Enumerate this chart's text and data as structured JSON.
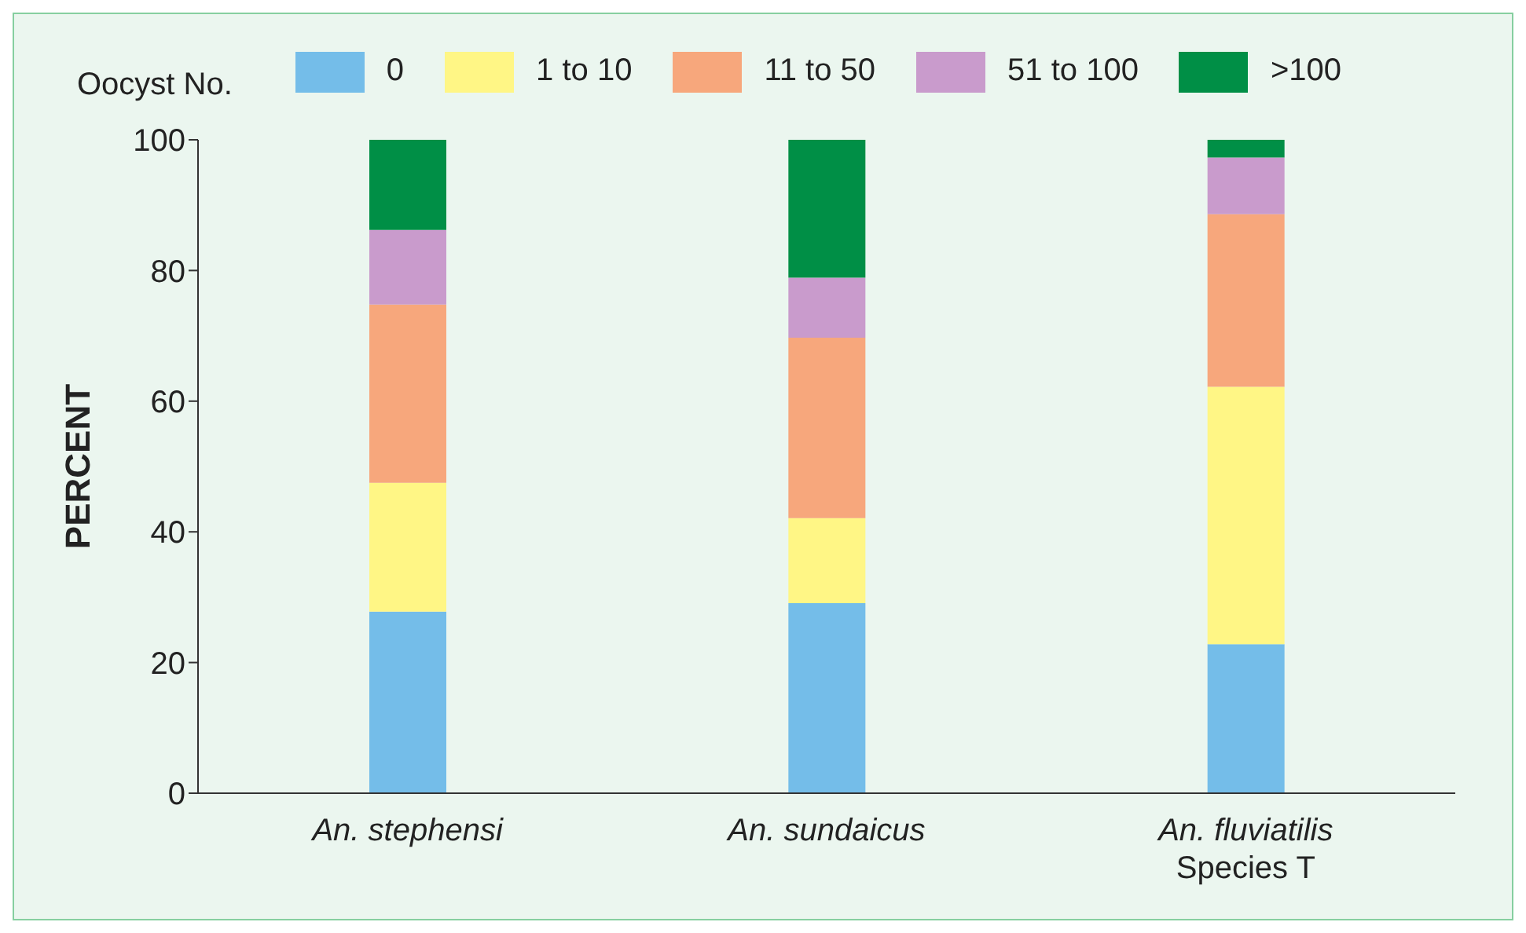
{
  "chart_data": {
    "type": "bar",
    "stacked": true,
    "ylabel": "PERCENT",
    "legend_title": "Oocyst No.",
    "legend": "top",
    "categories": [
      "An. stephensi",
      "An. sundaicus",
      "An. fluviatilis\nSpecies T"
    ],
    "series": [
      {
        "name": "0",
        "color": "#74bde9",
        "values": [
          27.8,
          29.1,
          22.8
        ]
      },
      {
        "name": "1 to 10",
        "color": "#fff685",
        "values": [
          19.7,
          13.0,
          39.4
        ]
      },
      {
        "name": "11 to 50",
        "color": "#f7a77c",
        "values": [
          27.3,
          27.6,
          26.4
        ]
      },
      {
        "name": "51 to 100",
        "color": "#c99bcc",
        "values": [
          11.4,
          9.2,
          8.7
        ]
      },
      {
        "name": ">100",
        "color": "#008f46",
        "values": [
          13.8,
          21.1,
          2.7
        ]
      }
    ],
    "ylim": [
      0,
      100
    ],
    "yticks": [
      0,
      20,
      40,
      60,
      80,
      100
    ],
    "grid": false
  }
}
